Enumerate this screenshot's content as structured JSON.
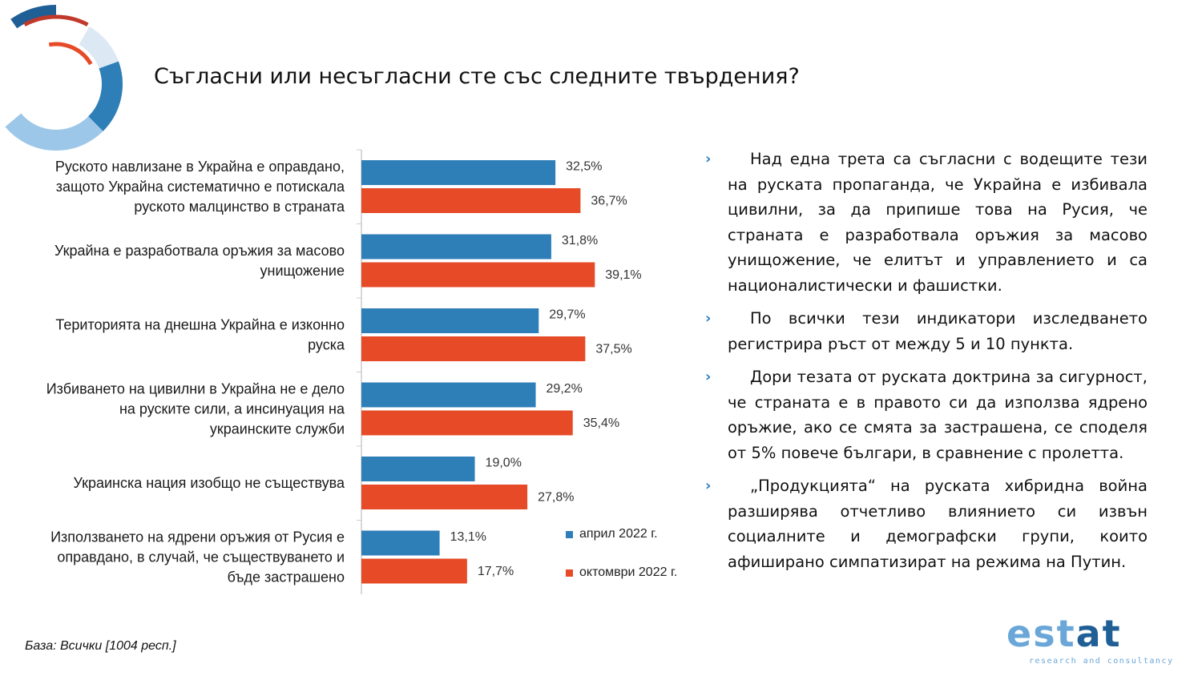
{
  "title": "Съгласни или несъгласни сте със следните твърдения?",
  "colors": {
    "april": "#2e7eb8",
    "october": "#e64a27",
    "axis": "#cccccc",
    "accent_text": "#2e7fc1"
  },
  "chart_data": {
    "type": "bar",
    "orientation": "horizontal",
    "categories": [
      [
        "Руското навлизане в Украйна е оправдано,",
        "защото Украйна систематично е потискала",
        "руското малцинство в страната"
      ],
      [
        "Украйна е разработвала оръжия за масово",
        "унищожение"
      ],
      [
        "Територията на днешна Украйна е изконно",
        "руска"
      ],
      [
        "Избиването на цивилни в Украйна не е дело",
        "на руските сили, а инсинуация на",
        "украинските служби"
      ],
      [
        "Украинска нация изобщо не съществува"
      ],
      [
        "Използването на ядрени оръжия от Русия е",
        "оправдано, в случай, че съществуването и",
        "бъде застрашено"
      ]
    ],
    "series": [
      {
        "name": "април 2022 г.",
        "values": [
          32.5,
          31.8,
          29.7,
          29.2,
          19.0,
          13.1
        ],
        "labels": [
          "32,5%",
          "31,8%",
          "29,7%",
          "29,2%",
          "19,0%",
          "13,1%"
        ]
      },
      {
        "name": "октомври 2022 г.",
        "values": [
          36.7,
          39.1,
          37.5,
          35.4,
          27.8,
          17.7
        ],
        "labels": [
          "36,7%",
          "39,1%",
          "37,5%",
          "35,4%",
          "27,8%",
          "17,7%"
        ]
      }
    ],
    "xlim": [
      0,
      100
    ],
    "legend_position": "bottom-right"
  },
  "bullets": [
    "Над една трета са съгласни с водещите тези на руската пропаганда, че Украйна е избивала цивилни, за да припише това на Русия, че страната е разработвала оръжия за масово унищожение, че елитът и управлението и са националистически и фашистки.",
    "По всички тези индикатори изследването регистрира ръст от между 5 и 10 пункта.",
    "Дори тезата от руската доктрина за сигурност, че страната е в правото си да използва ядрено оръжие, ако се смята за застрашена, се споделя от 5% повече българи, в сравнение с пролетта.",
    "„Продукцията“ на руската хибридна война разширява отчетливо влиянието си извън социалните и демографски групи, които афиширано симпатизират на режима на Путин."
  ],
  "bullet_marker": "›",
  "base_note": "База: Всички [1004 респ.]",
  "logo": {
    "word_light_1": "e",
    "word_light_2": "s",
    "word_light_3": "t",
    "word_dark": "at",
    "tagline": "research and consultancy"
  }
}
